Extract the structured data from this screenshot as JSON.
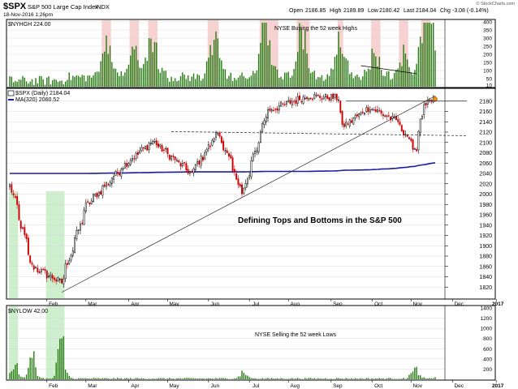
{
  "header": {
    "symbol": "$SPX",
    "name": "S&P 500 Large Cap Index",
    "exchange": "INDX",
    "date": "18-Nov-2016 1:26pm",
    "open_label": "Open",
    "open": "2186.85",
    "high_label": "High",
    "high": "2189.89",
    "low_label": "Low",
    "low": "2180.42",
    "last_label": "Last",
    "last": "2184.04",
    "chg_label": "Chg",
    "chg": "-3.08 (-0.14%)",
    "brand": "© StockCharts.com"
  },
  "top_panel": {
    "legend": "$NYHGH 224.00",
    "annotation": "NYSE Buying the 52 week Highs"
  },
  "main_panel": {
    "legend_price": "$SPX (Daily) 2184.04",
    "legend_ma": "MA(320) 2060.52",
    "annotation": "Defining Tops and Bottoms in the S&P 500"
  },
  "bottom_panel": {
    "legend": "$NYLOW 42.00",
    "annotation": "NYSE Selling the 52 week Lows"
  },
  "colors": {
    "up_bar": "#2a7d16",
    "candle_up": "#000000",
    "candle_down": "#cc0000",
    "ma_line": "#1c1c9c",
    "highlight_red": "#f7c9c9",
    "highlight_green": "#c6ecc6",
    "grid": "#d9d9d9",
    "frame": "#000000"
  },
  "chart_data": [
    {
      "type": "bar",
      "title": "NYSE Buying the 52 week Highs",
      "series": [
        {
          "name": "$NYHGH",
          "last": 224.0
        }
      ],
      "ylim": [
        0,
        400
      ],
      "yticks": [
        10,
        50,
        100,
        150,
        200,
        250,
        300,
        350,
        400
      ],
      "highlight_ranges": [
        [
          "2016-03-14",
          "2016-03-18"
        ],
        [
          "2016-04-04",
          "2016-04-08"
        ],
        [
          "2016-04-18",
          "2016-04-22"
        ],
        [
          "2016-06-01",
          "2016-06-08"
        ],
        [
          "2016-07-11",
          "2016-07-22"
        ],
        [
          "2016-08-08",
          "2016-08-16"
        ],
        [
          "2016-09-07",
          "2016-09-09"
        ],
        [
          "2016-10-03",
          "2016-10-07"
        ],
        [
          "2016-10-24",
          "2016-10-28"
        ],
        [
          "2016-11-09",
          "2016-11-15"
        ]
      ],
      "trendline": [
        [
          "2016-09-23",
          130
        ],
        [
          "2016-11-04",
          80
        ]
      ],
      "grid": true
    },
    {
      "type": "line",
      "subtype": "candlestick",
      "title": "Defining Tops and Bottoms in the S&P 500",
      "x": [
        "2016-01-04",
        "2016-01-20",
        "2016-02-11",
        "2016-03-01",
        "2016-03-31",
        "2016-04-20",
        "2016-05-19",
        "2016-06-08",
        "2016-06-27",
        "2016-07-15",
        "2016-08-15",
        "2016-09-07",
        "2016-09-09",
        "2016-09-30",
        "2016-10-21",
        "2016-11-04",
        "2016-11-10",
        "2016-11-18"
      ],
      "series": [
        {
          "name": "$SPX (Daily)",
          "values": [
            2016,
            1860,
            1829,
            1978,
            2060,
            2102,
            2040,
            2119,
            2000,
            2161,
            2190,
            2186,
            2128,
            2168,
            2141,
            2085,
            2167,
            2184
          ]
        },
        {
          "name": "MA(320)",
          "values": [
            2040,
            2040,
            2040,
            2040,
            2041,
            2042,
            2043,
            2043,
            2043,
            2044,
            2044,
            2045,
            2046,
            2047,
            2050,
            2054,
            2057,
            2060.52
          ]
        }
      ],
      "ylim": [
        1800,
        2200
      ],
      "yticks": [
        1820,
        1840,
        1860,
        1880,
        1900,
        1920,
        1940,
        1960,
        1980,
        2000,
        2020,
        2040,
        2060,
        2080,
        2100,
        2120,
        2140,
        2160,
        2180
      ],
      "xticks": [
        "Feb",
        "Mar",
        "Apr",
        "May",
        "Jun",
        "Jul",
        "Aug",
        "Sep",
        "Oct",
        "Nov",
        "Dec",
        "2017"
      ],
      "trendlines": [
        {
          "from": [
            "2016-02-11",
            1810
          ],
          "to": [
            "2016-11-18",
            2190
          ]
        },
        {
          "from": [
            "2016-09-13",
            2180
          ],
          "to": [
            "2016-12-12",
            2180
          ]
        },
        {
          "from": [
            "2016-05-04",
            2121
          ],
          "to": [
            "2016-12-12",
            2113
          ]
        }
      ],
      "grid": true
    },
    {
      "type": "bar",
      "title": "NYSE Selling the 52 week Lows",
      "series": [
        {
          "name": "$NYLOW",
          "last": 42.0
        }
      ],
      "ylim": [
        0,
        1400
      ],
      "yticks": [
        200,
        400,
        600,
        800,
        1000,
        1200,
        1400
      ],
      "highlight_ranges": [
        [
          "2016-01-04",
          "2016-01-08"
        ],
        [
          "2016-02-01",
          "2016-02-12"
        ]
      ],
      "grid": true
    }
  ]
}
